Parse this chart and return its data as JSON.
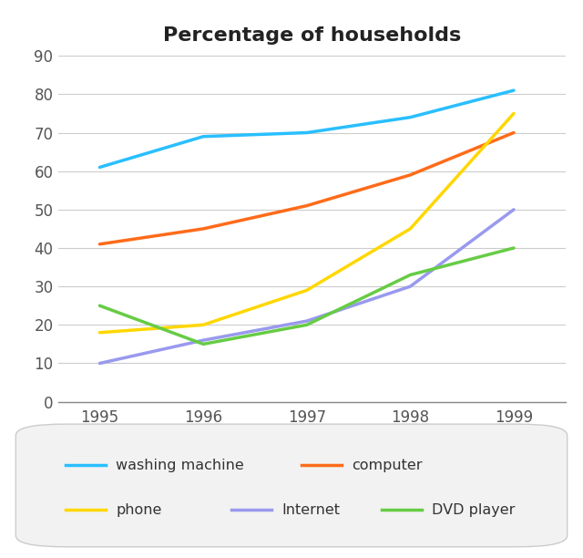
{
  "title": "Percentage of households",
  "years": [
    1995,
    1996,
    1997,
    1998,
    1999
  ],
  "series": {
    "washing machine": {
      "values": [
        61,
        69,
        70,
        74,
        81
      ],
      "color": "#29BFFF"
    },
    "computer": {
      "values": [
        41,
        45,
        51,
        59,
        70
      ],
      "color": "#FF6B1A"
    },
    "phone": {
      "values": [
        18,
        20,
        29,
        45,
        75
      ],
      "color": "#FFD700"
    },
    "Internet": {
      "values": [
        10,
        16,
        21,
        30,
        50
      ],
      "color": "#9999EE"
    },
    "DVD player": {
      "values": [
        25,
        15,
        20,
        33,
        40
      ],
      "color": "#66CC44"
    }
  },
  "ylim": [
    0,
    90
  ],
  "yticks": [
    0,
    10,
    20,
    30,
    40,
    50,
    60,
    70,
    80,
    90
  ],
  "xlim_left": 1994.6,
  "xlim_right": 1999.5,
  "background_color": "#ffffff",
  "legend_bg": "#f2f2f2",
  "linewidth": 2.5,
  "legend_order": [
    "washing machine",
    "computer",
    "phone",
    "Internet",
    "DVD player"
  ]
}
